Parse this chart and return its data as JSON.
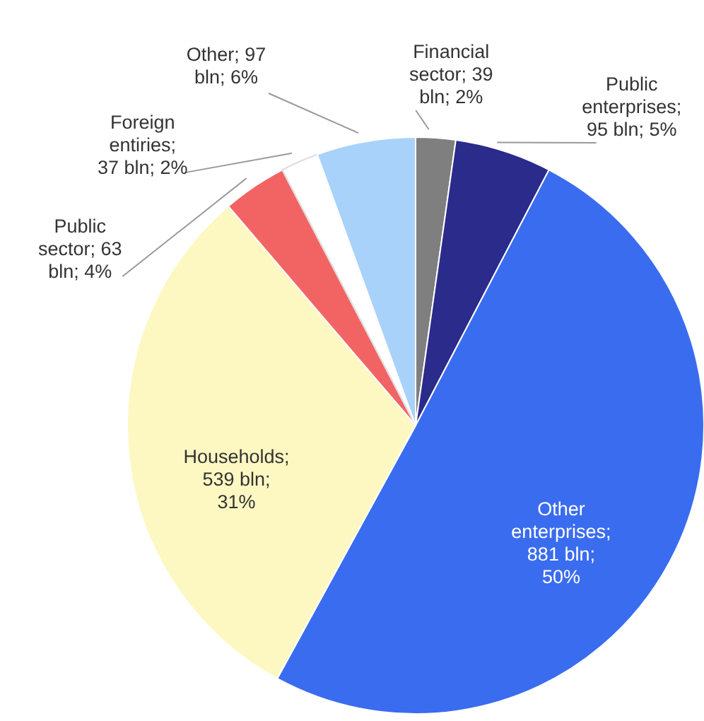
{
  "chart_data": {
    "type": "pie",
    "categories": [
      "Financial sector; 39 bln; 2%",
      "Public enterprises; 95 bln; 5%",
      "Other enterprises; 881 bln; 50%",
      "Households; 539 bln; 31%",
      "Public sector; 63 bln; 4%",
      "Foreign entiries; 37 bln; 2%",
      "Other; 97 bln; 6%"
    ],
    "values": [
      39,
      95,
      881,
      539,
      63,
      37,
      97
    ],
    "colors": [
      "#7f7f7f",
      "#2b2b8c",
      "#3a6cf0",
      "#fdf8c2",
      "#f26464",
      "#ffffff",
      "#a9d2fa"
    ],
    "legend": false
  }
}
